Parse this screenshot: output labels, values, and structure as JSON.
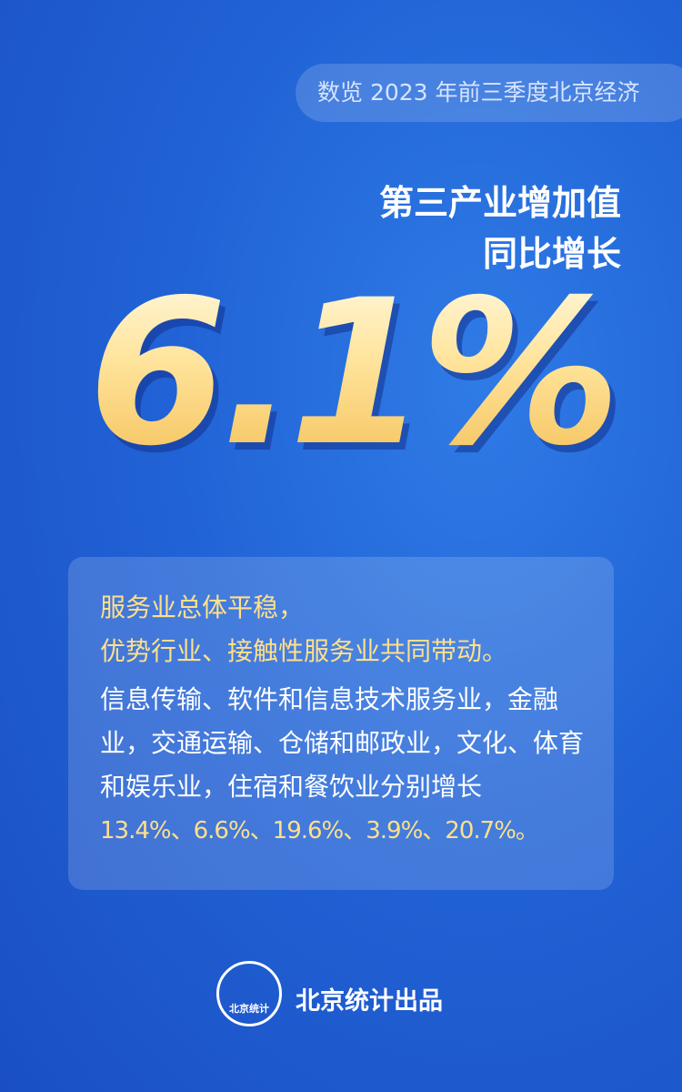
{
  "header": {
    "tag": "数览 2023 年前三季度北京经济"
  },
  "headline": {
    "lines": [
      "第三产业增加值",
      "同比增长"
    ],
    "figure": "6.1%"
  },
  "card": {
    "highlights": [
      "服务业总体平稳，",
      "优势行业、接触性服务业共同带动。"
    ],
    "body": [
      "信息传输、软件和信息技术服务业，金融",
      "业，交通运输、仓储和邮政业，文化、体育",
      "和娱乐业，住宿和餐饮业分别增长"
    ],
    "figures": "13.4%、6.6%、19.6%、3.9%、20.7%。"
  },
  "footer": {
    "logo_text": "北京统计",
    "credit": "北京统计出品"
  }
}
